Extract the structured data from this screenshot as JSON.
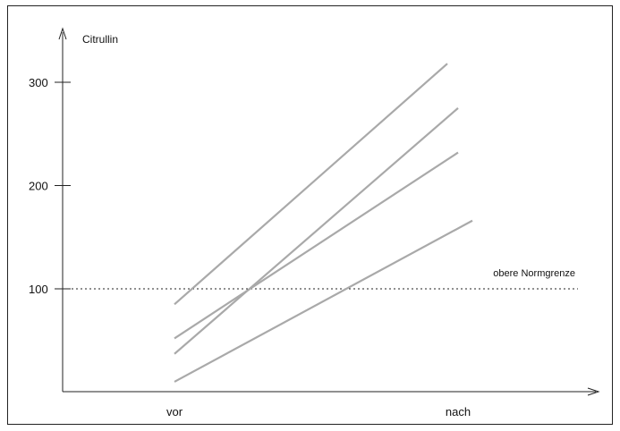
{
  "chart_data": {
    "type": "line",
    "ylabel": "Citrullin",
    "categories": [
      "vor",
      "nach"
    ],
    "yticks": [
      100,
      200,
      300
    ],
    "ylim": [
      0,
      350
    ],
    "grid": false,
    "series": [
      {
        "values": [
          85,
          318
        ]
      },
      {
        "values": [
          37,
          275
        ]
      },
      {
        "values": [
          52,
          232
        ]
      },
      {
        "values": [
          10,
          166
        ]
      }
    ],
    "reference_line": {
      "value": 100,
      "label": "obere Normgrenze",
      "style": "dotted"
    },
    "line_color": "#a9a9a9",
    "frame_color": "#222222"
  }
}
